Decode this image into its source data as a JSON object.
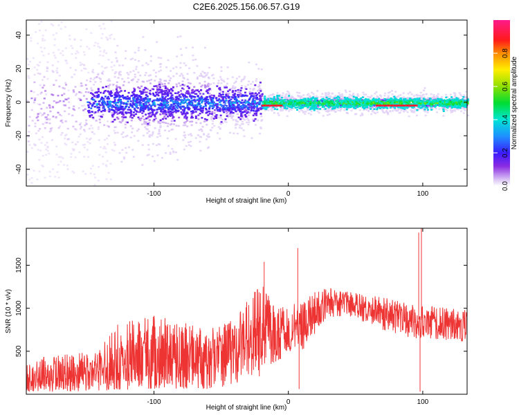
{
  "title": "C2E6.2025.156.06.57.G19",
  "chart_data": [
    {
      "type": "heatmap",
      "xlabel": "Height of straight line (km)",
      "ylabel": "Frequency (Hz)",
      "xlim": [
        -195,
        133
      ],
      "ylim": [
        -50,
        49
      ],
      "xticks": [
        -100,
        0,
        100
      ],
      "yticks": [
        -40,
        -20,
        0,
        20,
        40
      ],
      "colorbar": {
        "label": "Normalized spectral amplitude",
        "range": [
          0,
          1
        ],
        "ticks": [
          0.0,
          0.2,
          0.4,
          0.6,
          0.8
        ],
        "tick_labels": [
          "0.0",
          "0.2",
          "0.4",
          "0.6",
          "0.8"
        ],
        "colormap": "rainbow (white → violet → blue → cyan → green → yellow → red → magenta)"
      },
      "description_points": [
        {
          "x_range": [
            -195,
            -130
          ],
          "center_hz": 0,
          "spread_hz": 50,
          "dominant_amplitude": 0.05
        },
        {
          "x_range": [
            -130,
            -20
          ],
          "center_hz": 0,
          "spread_hz": 12,
          "dominant_amplitude": 0.25
        },
        {
          "x_range": [
            -20,
            133
          ],
          "center_hz": 0,
          "spread_hz": 4,
          "dominant_amplitude": 0.5
        },
        {
          "x_range": [
            -20,
            -5
          ],
          "center_hz": -2,
          "spread_hz": 1,
          "dominant_amplitude": 0.9
        },
        {
          "x_range": [
            65,
            95
          ],
          "center_hz": -2,
          "spread_hz": 1,
          "dominant_amplitude": 0.9
        }
      ]
    },
    {
      "type": "line",
      "xlabel": "Height of straight line (km)",
      "ylabel": "SNR (10 * v/v)",
      "xlim": [
        -195,
        133
      ],
      "ylim": [
        0,
        1930
      ],
      "xticks": [
        -100,
        0,
        100
      ],
      "yticks": [
        500,
        1000,
        1500
      ],
      "series": [
        {
          "color": "#ee3333",
          "envelope": [
            {
              "x": -195,
              "low": 30,
              "mid": 200,
              "high": 420
            },
            {
              "x": -160,
              "low": 30,
              "mid": 220,
              "high": 470
            },
            {
              "x": -140,
              "low": 40,
              "mid": 250,
              "high": 520
            },
            {
              "x": -130,
              "low": 50,
              "mid": 330,
              "high": 800
            },
            {
              "x": -100,
              "low": 60,
              "mid": 400,
              "high": 930
            },
            {
              "x": -80,
              "low": 60,
              "mid": 440,
              "high": 860
            },
            {
              "x": -60,
              "low": 60,
              "mid": 460,
              "high": 760
            },
            {
              "x": -40,
              "low": 100,
              "mid": 560,
              "high": 900
            },
            {
              "x": -20,
              "low": 200,
              "mid": 680,
              "high": 1300
            },
            {
              "x": -10,
              "low": 350,
              "mid": 720,
              "high": 1000
            },
            {
              "x": 0,
              "low": 480,
              "mid": 800,
              "high": 1050
            },
            {
              "x": 10,
              "low": 500,
              "mid": 820,
              "high": 1050
            },
            {
              "x": 20,
              "low": 700,
              "mid": 980,
              "high": 1200
            },
            {
              "x": 30,
              "low": 900,
              "mid": 1080,
              "high": 1240
            },
            {
              "x": 50,
              "low": 880,
              "mid": 1020,
              "high": 1180
            },
            {
              "x": 70,
              "low": 750,
              "mid": 960,
              "high": 1130
            },
            {
              "x": 90,
              "low": 650,
              "mid": 880,
              "high": 1050
            },
            {
              "x": 110,
              "low": 640,
              "mid": 840,
              "high": 1020
            },
            {
              "x": 133,
              "low": 600,
              "mid": 780,
              "high": 980
            }
          ],
          "spikes": [
            {
              "x": -18,
              "y": 1540
            },
            {
              "x": 7,
              "y": 1700
            },
            {
              "x": 8,
              "y": 60
            },
            {
              "x": 97,
              "y": 1880
            },
            {
              "x": 98,
              "y": 30
            },
            {
              "x": 99,
              "y": 1950
            }
          ]
        }
      ]
    }
  ]
}
